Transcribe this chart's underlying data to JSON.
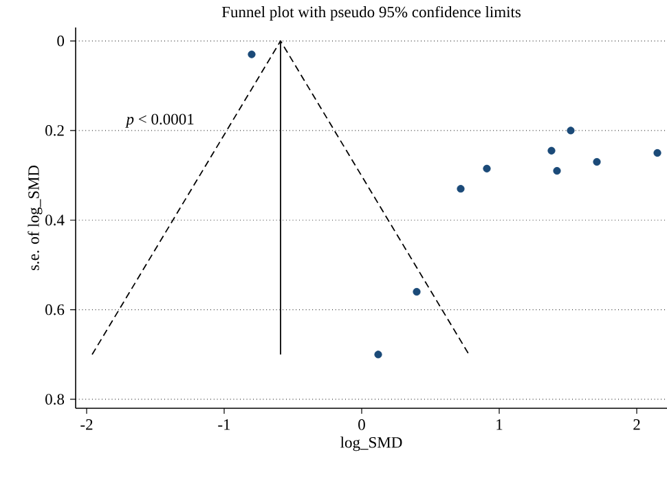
{
  "chart_data": {
    "type": "scatter",
    "title": "Funnel plot with pseudo 95% confidence limits",
    "xlabel": "log_SMD",
    "ylabel": "s.e. of log_SMD",
    "xlim": [
      -2.08,
      2.22
    ],
    "xticks": [
      -2,
      -1,
      0,
      1,
      2
    ],
    "ylim": [
      0.82,
      -0.03
    ],
    "yticks": [
      0,
      0.2,
      0.4,
      0.6,
      0.8
    ],
    "grid": "y",
    "marker": "circle",
    "series": [
      {
        "color": "#1b4a78",
        "x": [
          -0.8,
          0.72,
          0.91,
          1.38,
          1.52,
          1.42,
          1.71,
          2.15,
          0.4,
          0.12
        ],
        "values": [
          0.03,
          0.33,
          0.285,
          0.245,
          0.2,
          0.29,
          0.27,
          0.25,
          0.56,
          0.7
        ]
      },
      {
        "type": "line",
        "color": "#000000",
        "line_style": "dashed",
        "marker": "none",
        "x": [
          -1.96,
          -0.59,
          0.78
        ],
        "values": [
          0.7,
          0,
          0.7
        ]
      },
      {
        "type": "line",
        "color": "#000000",
        "line_style": "solid",
        "marker": "none",
        "x": [
          -0.59,
          -0.59
        ],
        "values": [
          0,
          0.7
        ]
      }
    ],
    "annotations": [
      "*p* < 0.0001"
    ]
  }
}
